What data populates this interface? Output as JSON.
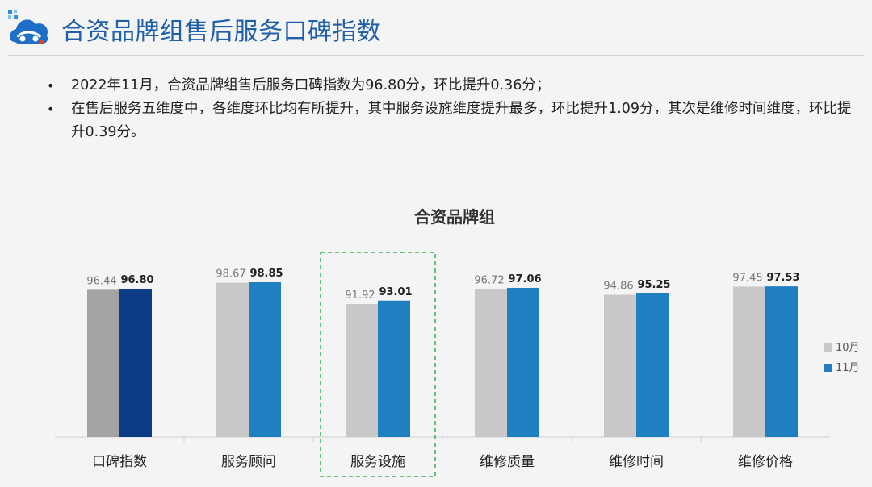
{
  "header": {
    "title": "合资品牌组售后服务口碑指数",
    "logo_icon": "car-cloud-logo-icon"
  },
  "summary": [
    "2022年11月，合资品牌组售后服务口碑指数为96.80分，环比提升0.36分；",
    "在售后服务五维度中，各维度环比均有所提升，其中服务设施维度提升最多，环比提升1.09分，其次是维修时间维度，环比提升0.39分。"
  ],
  "chart_data": {
    "type": "bar",
    "title": "合资品牌组",
    "categories": [
      "口碑指数",
      "服务顾问",
      "服务设施",
      "维修质量",
      "维修时间",
      "维修价格"
    ],
    "series": [
      {
        "name": "10月",
        "values": [
          96.44,
          98.67,
          91.92,
          96.72,
          94.86,
          97.45
        ],
        "color": "#c8c8c8"
      },
      {
        "name": "11月",
        "values": [
          96.8,
          98.85,
          93.01,
          97.06,
          95.25,
          97.53
        ],
        "color": "#1f7fc0"
      }
    ],
    "highlight_colors": {
      "10月": "#a3a3a3",
      "11月": "#0d3b86"
    },
    "highlight_first_category": true,
    "highlighted_category": "服务设施",
    "highlight_box_color": "#2eaf5a",
    "legend_position": "right",
    "grid": false
  }
}
